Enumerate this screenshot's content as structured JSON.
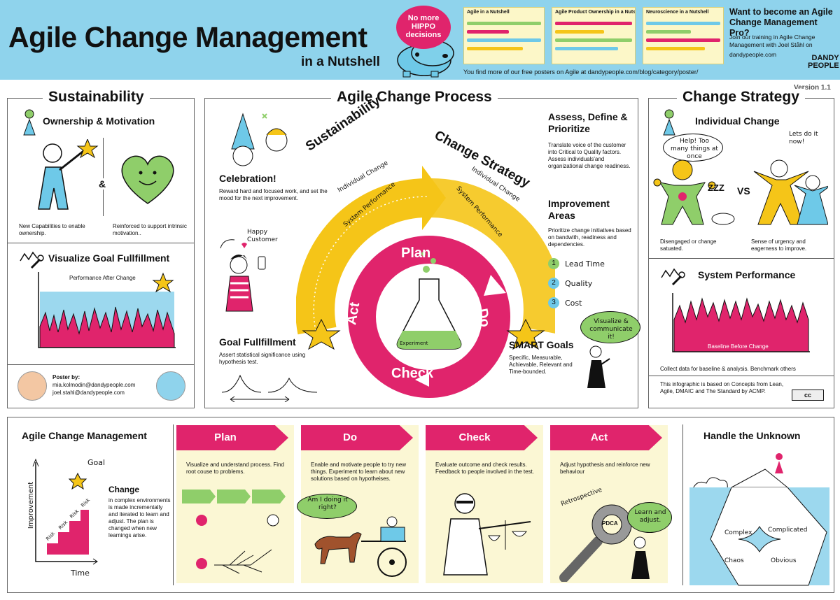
{
  "header": {
    "title": "Agile Change Management",
    "subtitle": "in a Nutshell",
    "hippo_bubble": "No more HIPPO decisions",
    "thumbnails": [
      "Agile in a Nutshell",
      "Agile Product Ownership in a Nutshell",
      "Neuroscience in a Nutshell"
    ],
    "thumb_caption": "You find more of our free posters on Agile at dandypeople.com/blog/category/poster/",
    "promo_heading": "Want to become an Agile Change Management Pro?",
    "promo_text": "Join our training in Agile Change Management with Joel Ståhl on",
    "promo_link": "dandypeople.com",
    "logo_line1": "DANDY",
    "logo_line2": "PEOPLE",
    "version": "Version 1.1"
  },
  "sustainability": {
    "title": "Sustainability",
    "ownership_heading": "Ownership & Motivation",
    "ampersand": "&",
    "caption_left": "New Capabilities to enable ownership.",
    "caption_right": "Reinforced to support intrinsic motivation..",
    "goal_heading": "Visualize Goal Fullfillment",
    "chart_label": "Performance After Change",
    "poster_by": "Poster by:",
    "email1": "mia.kolmodin@dandypeople.com",
    "email2": "joel.stahl@dandypeople.com"
  },
  "process": {
    "title": "Agile Change Process",
    "celebration_heading": "Celebration!",
    "celebration_text": "Reward hard and focused work, and set the mood for the next improvement.",
    "happy_customer": "Happy Customer",
    "goal_heading": "Goal Fullfillment",
    "goal_text": "Assert statistical significance using hypothesis test.",
    "arc_left": "Sustainability",
    "arc_right": "Change Strategy",
    "arc_individual": "Individual Change",
    "arc_system": "System Performance",
    "plan": "Plan",
    "do": "Do",
    "check": "Check",
    "act": "Act",
    "experiment": "Experiment",
    "assess_heading": "Assess, Define & Prioritize",
    "assess_text": "Translate voice of the customer into Critical to Quality factors. Assess individuals'and organizational change readiness.",
    "improvement_heading": "Improvement Areas",
    "improvement_text": "Prioritize change initiatives based on bandwith, readiness and dependencies.",
    "areas": [
      {
        "num": "1",
        "label": "Lead Time",
        "color": "#8fce6a"
      },
      {
        "num": "2",
        "label": "Quality",
        "color": "#6ec9e8"
      },
      {
        "num": "3",
        "label": "Cost",
        "color": "#6ec9e8"
      }
    ],
    "smart_heading": "SMART Goals",
    "smart_text": "Specific, Measurable, Achievable, Relevant and Time-bounded.",
    "visualize_bubble": "Visualize & communicate it!"
  },
  "strategy": {
    "title": "Change Strategy",
    "individual_heading": "Individual Change",
    "help_bubble": "Help! Too many things at once",
    "lets_do": "Lets do it now!",
    "zzz": "ZZZ",
    "vs": "VS",
    "caption_left": "Disengaged or change satuated.",
    "caption_right": "Sense of urgency and eagerness to improve.",
    "system_heading": "System Performance",
    "chart_label": "Baseline Before Change",
    "collect_text": "Collect data for baseline & analysis. Benchmark others",
    "based_text": "This infographic is based on Concepts from Lean, Agile, DMAIC and The Standard by ACMP.",
    "cc": "cc"
  },
  "bottom": {
    "acm_heading": "Agile Change Management",
    "goal": "Goal",
    "change_heading": "Change",
    "change_text": "in complex environments is made incrementally and iterated to learn and adjust. The plan is changed when new learnings arise.",
    "y_axis": "Improvement",
    "x_axis": "Time",
    "risk": "Risk",
    "steps": [
      {
        "label": "Plan",
        "text": "Visualize and understand process. Find root couse to problems."
      },
      {
        "label": "Do",
        "text": "Enable and motivate people to try new things. Experiment to learn about new solutions based on hypotheises."
      },
      {
        "label": "Check",
        "text": "Evaluate outcome and check results. Feedback to people involved in the test."
      },
      {
        "label": "Act",
        "text": "Adjust hypothesis and reinforce new behaviour"
      }
    ],
    "doing_bubble": "Am I doing it right?",
    "retrospective": "Retrospective",
    "pdca": "PDCA",
    "learn_bubble": "Learn and adjust.",
    "unknown_heading": "Handle the Unknown",
    "cynefin": [
      "Complex",
      "Complicated",
      "Chaos",
      "Obvious"
    ]
  },
  "colors": {
    "header_bg": "#8fd3ec",
    "pink": "#e0246c",
    "yellow": "#f5c518",
    "green": "#8fce6a",
    "blue": "#8fd3ec",
    "cream": "#fbf7d4"
  }
}
